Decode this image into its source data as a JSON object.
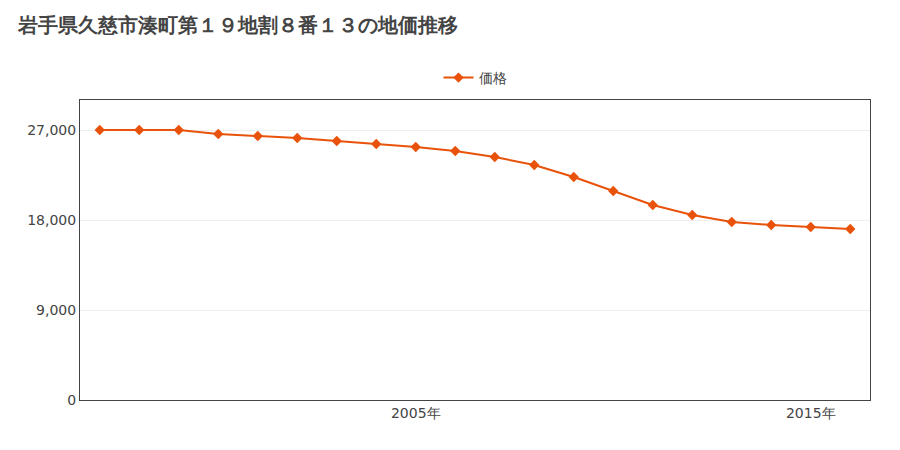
{
  "chart_data": {
    "type": "line",
    "title": "岩手県久慈市湊町第１９地割８番１３の地価推移",
    "x": [
      1997,
      1998,
      1999,
      2000,
      2001,
      2002,
      2003,
      2004,
      2005,
      2006,
      2007,
      2008,
      2009,
      2010,
      2011,
      2012,
      2013,
      2014,
      2015,
      2016
    ],
    "series": [
      {
        "name": "価格",
        "color": "#e8520a",
        "marker": "diamond",
        "line_style": "solid",
        "values": [
          27000,
          27000,
          27000,
          26600,
          26400,
          26200,
          25900,
          25600,
          25300,
          24900,
          24300,
          23500,
          22300,
          20900,
          19500,
          18500,
          17800,
          17500,
          17300,
          17100
        ]
      }
    ],
    "xlim": [
      1996.5,
      2016.5
    ],
    "xticks": [
      {
        "value": 2005,
        "label": "2005年"
      },
      {
        "value": 2015,
        "label": "2015年"
      }
    ],
    "ylim": [
      0,
      30000
    ],
    "yticks": [
      0,
      {
        "value": 9000,
        "label": "9,000"
      },
      {
        "value": 18000,
        "label": "18,000"
      },
      {
        "value": 27000,
        "label": "27,000"
      }
    ],
    "grid": "y",
    "legend": "top"
  }
}
